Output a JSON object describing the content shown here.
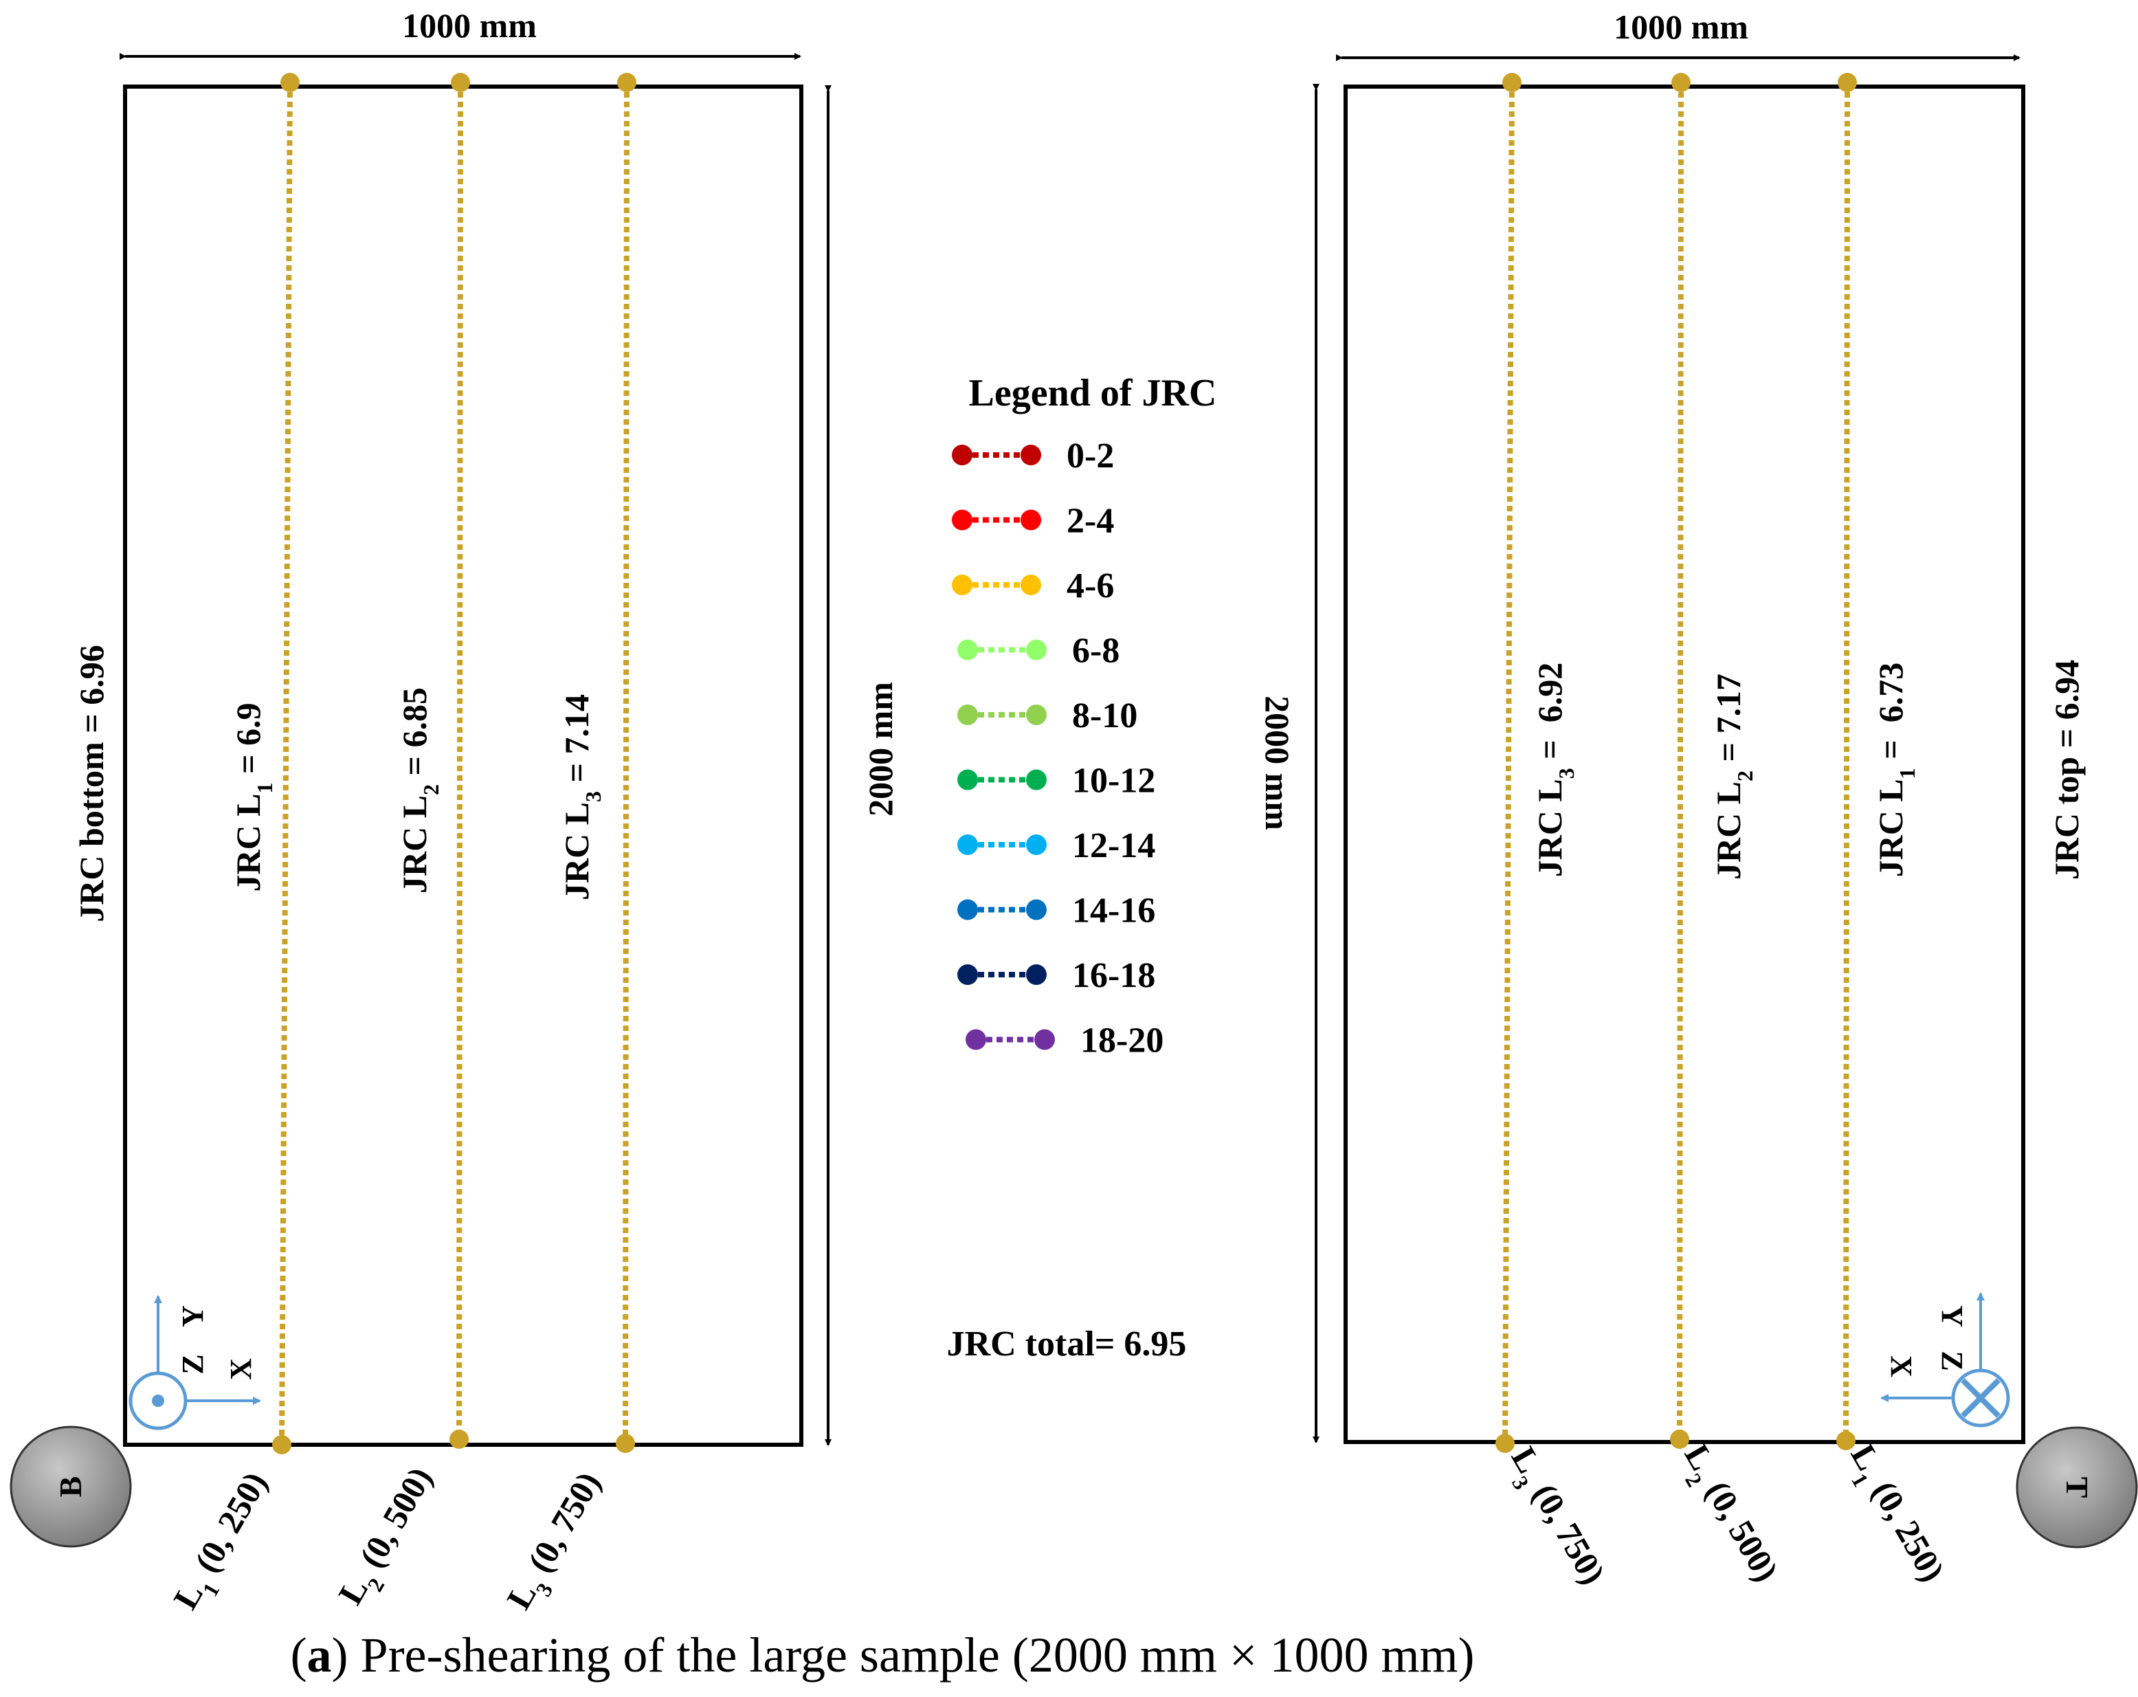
{
  "left_panel": {
    "width_label": "1000 mm",
    "height_label": "2000 mm",
    "side_label": "JRC bottom = 6.96",
    "badge_letter": "B",
    "axes": {
      "y": "Y",
      "z": "Z",
      "x": "X"
    },
    "lines": [
      {
        "prefix": "JRC L",
        "sub": "1",
        "value_text": " = 6.9",
        "point_prefix": "L",
        "point_coords": " (0, 250)",
        "jrc": 6.9
      },
      {
        "prefix": "JRC L",
        "sub": "2",
        "value_text": " = 6.85",
        "point_prefix": "L",
        "point_coords": " (0, 500)",
        "jrc": 6.85
      },
      {
        "prefix": "JRC L",
        "sub": "3",
        "value_text": " = 7.14",
        "point_prefix": "L",
        "point_coords": " (0, 750)",
        "jrc": 7.14
      }
    ]
  },
  "right_panel": {
    "width_label": "1000 mm",
    "height_label": "2000 mm",
    "side_label": "JRC top = 6.94",
    "badge_letter": "T",
    "axes": {
      "y": "Y",
      "z": "Z",
      "x": "X"
    },
    "lines": [
      {
        "prefix": "JRC L",
        "sub": "3",
        "value_text": " =  6.92",
        "point_prefix": "L",
        "point_coords": " (0, 750)",
        "jrc": 6.92
      },
      {
        "prefix": "JRC L",
        "sub": "2",
        "value_text": " = 7.17",
        "point_prefix": "L",
        "point_coords": " (0, 500)",
        "jrc": 7.17
      },
      {
        "prefix": "JRC L",
        "sub": "1",
        "value_text": " =  6.73",
        "point_prefix": "L",
        "point_coords": " (0, 250)",
        "jrc": 6.73
      }
    ]
  },
  "legend": {
    "title": "Legend of JRC",
    "items": [
      {
        "range": "0-2",
        "color": "#c00000"
      },
      {
        "range": "2-4",
        "color": "#ff0000"
      },
      {
        "range": "4-6",
        "color": "#ffc000"
      },
      {
        "range": "6-8",
        "color": "#92ff6a"
      },
      {
        "range": "8-10",
        "color": "#92d050"
      },
      {
        "range": "10-12",
        "color": "#00b050"
      },
      {
        "range": "12-14",
        "color": "#00b0f0"
      },
      {
        "range": "14-16",
        "color": "#0070c0"
      },
      {
        "range": "16-18",
        "color": "#002060"
      },
      {
        "range": "18-20",
        "color": "#7030a0"
      }
    ]
  },
  "jrc_total": "JRC total= 6.95",
  "caption": {
    "prefix": "(",
    "letter": "a",
    "text": ") Pre-shearing of the large sample (2000 mm × 1000 mm)"
  },
  "colors": {
    "profile_line": "#c9a227",
    "frame": "#000000",
    "axis": "#5b9bd5",
    "badge_fill": "#8c8c8c"
  }
}
